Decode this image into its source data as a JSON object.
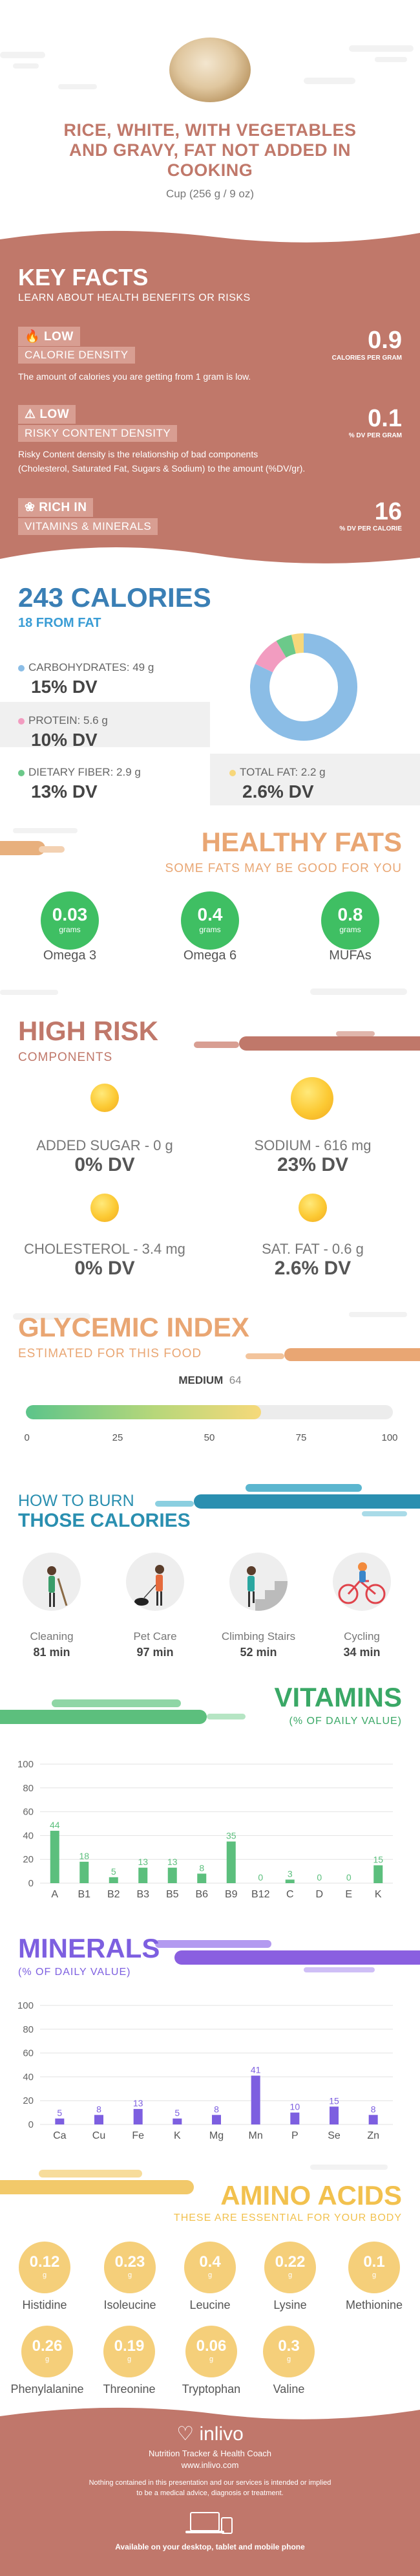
{
  "header": {
    "title_line1": "RICE, WHITE, WITH VEGETABLES",
    "title_line2": "AND GRAVY, FAT NOT ADDED IN",
    "title_line3": "COOKING",
    "serving": "Cup (256 g / 9 oz)"
  },
  "key_facts": {
    "title": "KEY FACTS",
    "subtitle": "LEARN ABOUT HEALTH BENEFITS OR RISKS",
    "calorie": {
      "level": "LOW",
      "label": "CALORIE DENSITY",
      "desc": "The amount of calories you are getting from 1 gram is low.",
      "value": "0.9",
      "unit": "CALORIES PER GRAM"
    },
    "risky": {
      "level": "LOW",
      "label": "RISKY CONTENT DENSITY",
      "desc1": "Risky Content density is the relationship of bad components",
      "desc2": "(Cholesterol, Saturated Fat, Sugars & Sodium) to the amount (%DV/gr).",
      "value": "0.1",
      "unit": "% DV PER GRAM"
    },
    "rich": {
      "level": "RICH IN",
      "label": "VITAMINS & MINERALS",
      "value": "16",
      "unit": "% DV PER CALORIE"
    }
  },
  "calories": {
    "title": "243 CALORIES",
    "from_fat": "18 FROM FAT",
    "carbs_label": "CARBOHYDRATES: 49 g",
    "carbs_dv": "15% DV",
    "protein_label": "PROTEIN: 5.6 g",
    "protein_dv": "10% DV",
    "fiber_label": "DIETARY FIBER: 2.9 g",
    "fiber_dv": "13% DV",
    "fat_label": "TOTAL FAT: 2.2 g",
    "fat_dv": "2.6% DV",
    "colors": {
      "carbs": "#8bbde6",
      "protein": "#f29cc0",
      "fiber": "#6cc98a",
      "fat": "#f7d77a"
    },
    "donut": [
      {
        "name": "carbs",
        "value": 49
      },
      {
        "name": "protein",
        "value": 5.6
      },
      {
        "name": "fiber",
        "value": 2.9
      },
      {
        "name": "fat",
        "value": 2.2
      }
    ]
  },
  "healthy_fats": {
    "title": "HEALTHY FATS",
    "subtitle": "SOME FATS MAY BE GOOD FOR YOU",
    "items": [
      {
        "value": "0.03",
        "unit": "grams",
        "label": "Omega 3"
      },
      {
        "value": "0.4",
        "unit": "grams",
        "label": "Omega 6"
      },
      {
        "value": "0.8",
        "unit": "grams",
        "label": "MUFAs"
      }
    ]
  },
  "high_risk": {
    "title": "HIGH RISK",
    "subtitle": "COMPONENTS",
    "items": [
      {
        "label": "ADDED SUGAR - 0 g",
        "dv": "0% DV"
      },
      {
        "label": "SODIUM - 616 mg",
        "dv": "23% DV"
      },
      {
        "label": "CHOLESTEROL - 3.4 mg",
        "dv": "0% DV"
      },
      {
        "label": "SAT. FAT - 0.6 g",
        "dv": "2.6% DV"
      }
    ]
  },
  "glycemic": {
    "title": "GLYCEMIC INDEX",
    "subtitle": "ESTIMATED FOR THIS FOOD",
    "level": "MEDIUM",
    "value": 64,
    "value_text": "64",
    "ticks": [
      "0",
      "25",
      "50",
      "75",
      "100"
    ]
  },
  "burn": {
    "title1": "HOW TO BURN",
    "title2": "THOSE CALORIES",
    "items": [
      {
        "label": "Cleaning",
        "value": "81 min",
        "icon": "cleaning-icon"
      },
      {
        "label": "Pet Care",
        "value": "97 min",
        "icon": "pet-care-icon"
      },
      {
        "label": "Climbing Stairs",
        "value": "52 min",
        "icon": "stairs-icon"
      },
      {
        "label": "Cycling",
        "value": "34 min",
        "icon": "cycling-icon"
      }
    ]
  },
  "chart_data": [
    {
      "type": "bar",
      "title": "VITAMINS",
      "subtitle": "(% OF DAILY VALUE)",
      "categories": [
        "A",
        "B1",
        "B2",
        "B3",
        "B5",
        "B6",
        "B9",
        "B12",
        "C",
        "D",
        "E",
        "K"
      ],
      "values": [
        44,
        18,
        5,
        13,
        13,
        8,
        35,
        0,
        3,
        0,
        0,
        15
      ],
      "labels": [
        "44",
        "18",
        "5",
        "13",
        "13",
        "8",
        "35",
        "0",
        "3",
        "0",
        "0",
        "15"
      ],
      "yticks": [
        "100",
        "80",
        "60",
        "40",
        "20",
        "0"
      ],
      "ylim": [
        0,
        100
      ],
      "color": "#5cbf7d",
      "grid": true
    },
    {
      "type": "bar",
      "title": "MINERALS",
      "subtitle": "(% OF DAILY VALUE)",
      "categories": [
        "Ca",
        "Cu",
        "Fe",
        "K",
        "Mg",
        "Mn",
        "P",
        "Se",
        "Zn"
      ],
      "values": [
        5,
        8,
        13,
        5,
        8,
        41,
        10,
        15,
        8
      ],
      "labels": [
        "5",
        "8",
        "13",
        "5",
        "8",
        "41",
        "10",
        "15",
        "8"
      ],
      "yticks": [
        "100",
        "80",
        "60",
        "40",
        "20",
        "0"
      ],
      "ylim": [
        0,
        100
      ],
      "color": "#7d5fe0",
      "grid": true
    }
  ],
  "amino": {
    "title": "AMINO ACIDS",
    "subtitle": "THESE ARE ESSENTIAL FOR YOUR BODY",
    "items": [
      {
        "value": "0.12",
        "unit": "g",
        "label": "Histidine"
      },
      {
        "value": "0.23",
        "unit": "g",
        "label": "Isoleucine"
      },
      {
        "value": "0.4",
        "unit": "g",
        "label": "Leucine"
      },
      {
        "value": "0.22",
        "unit": "g",
        "label": "Lysine"
      },
      {
        "value": "0.1",
        "unit": "g",
        "label": "Methionine"
      },
      {
        "value": "0.26",
        "unit": "g",
        "label": "Phenylalanine"
      },
      {
        "value": "0.19",
        "unit": "g",
        "label": "Threonine"
      },
      {
        "value": "0.06",
        "unit": "g",
        "label": "Tryptophan"
      },
      {
        "value": "0.3",
        "unit": "g",
        "label": "Valine"
      }
    ]
  },
  "footer": {
    "brand": "inlivo",
    "tagline": "Nutrition Tracker & Health Coach",
    "url": "www.inlivo.com",
    "disclaimer1": "Nothing contained in this presentation and our services is intended or implied",
    "disclaimer2": "to be a medical advice, diagnosis or treatment.",
    "available": "Available on your desktop, tablet and mobile phone"
  }
}
